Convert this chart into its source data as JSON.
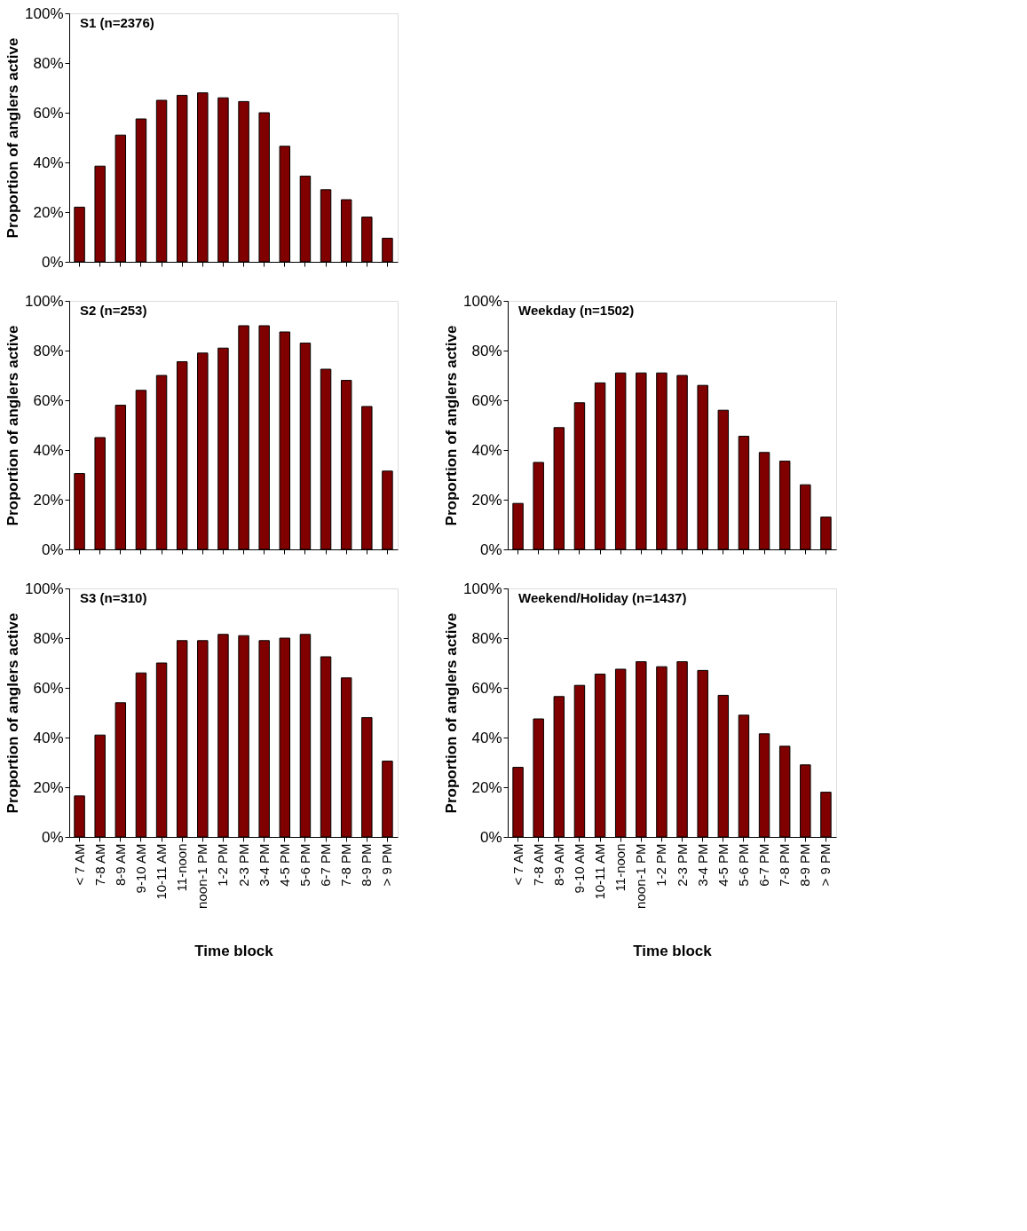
{
  "chart_data": [
    {
      "type": "bar",
      "title": "S1 (n=2376)",
      "ylabel": "Proportion of anglers active",
      "tick_labels": "y",
      "categories": [
        null,
        null,
        null,
        null,
        null,
        null,
        null,
        null,
        null,
        null,
        null,
        null,
        null,
        null,
        null,
        null
      ],
      "values": [
        22,
        38.5,
        51,
        57.5,
        65,
        67,
        68,
        66,
        64.5,
        60,
        46.5,
        34.5,
        29,
        25,
        18,
        9.5
      ],
      "color": "#800000",
      "ylim": [
        0,
        100
      ],
      "yticks": [
        {
          "value": 0,
          "label": "0%"
        },
        {
          "value": 20,
          "label": "20%"
        },
        {
          "value": 40,
          "label": "40%"
        },
        {
          "value": 60,
          "label": "60%"
        },
        {
          "value": 80,
          "label": "80%"
        },
        {
          "value": 100,
          "label": "100%"
        }
      ],
      "grid": false
    },
    {
      "type": "bar",
      "title": "S2 (n=253)",
      "ylabel": "Proportion of anglers active",
      "tick_labels": "y",
      "categories": [
        null,
        null,
        null,
        null,
        null,
        null,
        null,
        null,
        null,
        null,
        null,
        null,
        null,
        null,
        null,
        null
      ],
      "values": [
        30.5,
        45,
        58,
        64,
        70,
        75.5,
        79,
        81,
        90,
        90,
        87.5,
        83,
        72.5,
        68,
        57.5,
        31.5
      ],
      "color": "#800000",
      "ylim": [
        0,
        100
      ],
      "yticks": [
        {
          "value": 0,
          "label": "0%"
        },
        {
          "value": 20,
          "label": "20%"
        },
        {
          "value": 40,
          "label": "40%"
        },
        {
          "value": 60,
          "label": "60%"
        },
        {
          "value": 80,
          "label": "80%"
        },
        {
          "value": 100,
          "label": "100%"
        }
      ],
      "grid": false
    },
    {
      "type": "bar",
      "title": "Weekday (n=1502)",
      "ylabel": "Proportion of anglers active",
      "tick_labels": "y",
      "categories": [
        null,
        null,
        null,
        null,
        null,
        null,
        null,
        null,
        null,
        null,
        null,
        null,
        null,
        null,
        null,
        null
      ],
      "values": [
        18.5,
        35,
        49,
        59,
        67,
        71,
        71,
        71,
        70,
        66,
        56,
        45.5,
        39,
        35.5,
        26,
        13
      ],
      "color": "#800000",
      "ylim": [
        0,
        100
      ],
      "yticks": [
        {
          "value": 0,
          "label": "0%"
        },
        {
          "value": 20,
          "label": "20%"
        },
        {
          "value": 40,
          "label": "40%"
        },
        {
          "value": 60,
          "label": "60%"
        },
        {
          "value": 80,
          "label": "80%"
        },
        {
          "value": 100,
          "label": "100%"
        }
      ],
      "grid": false
    },
    {
      "type": "bar",
      "title": "S3 (n=310)",
      "ylabel": "Proportion of anglers active",
      "xlabel": "Time block",
      "categories": [
        "< 7 AM",
        "7-8 AM",
        "8-9 AM",
        "9-10 AM",
        "10-11 AM",
        "11-noon",
        "noon-1 PM",
        "1-2 PM",
        "2-3 PM",
        "3-4 PM",
        "4-5 PM",
        "5-6 PM",
        "6-7 PM",
        "7-8 PM",
        "8-9 PM",
        "> 9 PM"
      ],
      "values": [
        16.5,
        41,
        54,
        66,
        70,
        79,
        79,
        81.5,
        81,
        79,
        80,
        81.5,
        72.5,
        64,
        48,
        30.5
      ],
      "color": "#800000",
      "ylim": [
        0,
        100
      ],
      "yticks": [
        {
          "value": 0,
          "label": "0%"
        },
        {
          "value": 20,
          "label": "20%"
        },
        {
          "value": 40,
          "label": "40%"
        },
        {
          "value": 60,
          "label": "60%"
        },
        {
          "value": 80,
          "label": "80%"
        },
        {
          "value": 100,
          "label": "100%"
        }
      ],
      "grid": false
    },
    {
      "type": "bar",
      "title": "Weekend/Holiday (n=1437)",
      "ylabel": "Proportion of anglers active",
      "xlabel": "Time block",
      "categories": [
        "< 7 AM",
        "7-8 AM",
        "8-9 AM",
        "9-10 AM",
        "10-11 AM",
        "11-noon",
        "noon-1 PM",
        "1-2 PM",
        "2-3 PM",
        "3-4 PM",
        "4-5 PM",
        "5-6 PM",
        "6-7 PM",
        "7-8 PM",
        "8-9 PM",
        "> 9 PM"
      ],
      "values": [
        28,
        47.5,
        56.5,
        61,
        65.5,
        67.5,
        70.5,
        68.5,
        70.5,
        67,
        57,
        49,
        41.5,
        36.5,
        29,
        18
      ],
      "color": "#800000",
      "ylim": [
        0,
        100
      ],
      "yticks": [
        {
          "value": 0,
          "label": "0%"
        },
        {
          "value": 20,
          "label": "20%"
        },
        {
          "value": 40,
          "label": "40%"
        },
        {
          "value": 60,
          "label": "60%"
        },
        {
          "value": 80,
          "label": "80%"
        },
        {
          "value": 100,
          "label": "100%"
        }
      ],
      "grid": false
    }
  ]
}
